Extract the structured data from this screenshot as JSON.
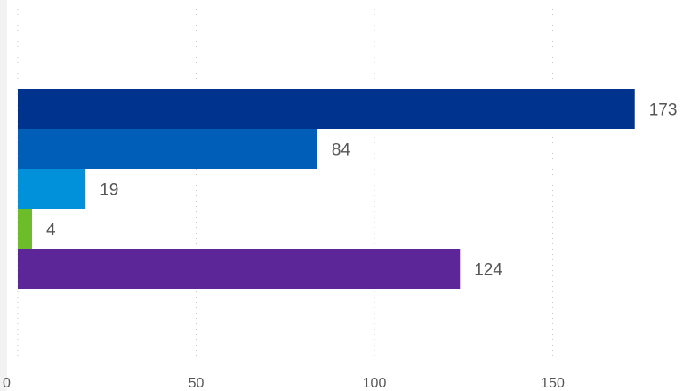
{
  "chart_data": {
    "type": "bar",
    "orientation": "horizontal",
    "series": [
      {
        "value": 173,
        "label": "173",
        "color": "#00338d"
      },
      {
        "value": 84,
        "label": "84",
        "color": "#005eb8"
      },
      {
        "value": 19,
        "label": "19",
        "color": "#0091da"
      },
      {
        "value": 4,
        "label": "4",
        "color": "#6dbd2a"
      },
      {
        "value": 124,
        "label": "124",
        "color": "#5c2698"
      }
    ],
    "xlim": [
      0,
      175
    ],
    "x_ticks": [
      {
        "value": 0,
        "label": "0"
      },
      {
        "value": 50,
        "label": "50"
      },
      {
        "value": 100,
        "label": "100"
      },
      {
        "value": 150,
        "label": "150"
      }
    ],
    "grid": true,
    "legend": false
  }
}
